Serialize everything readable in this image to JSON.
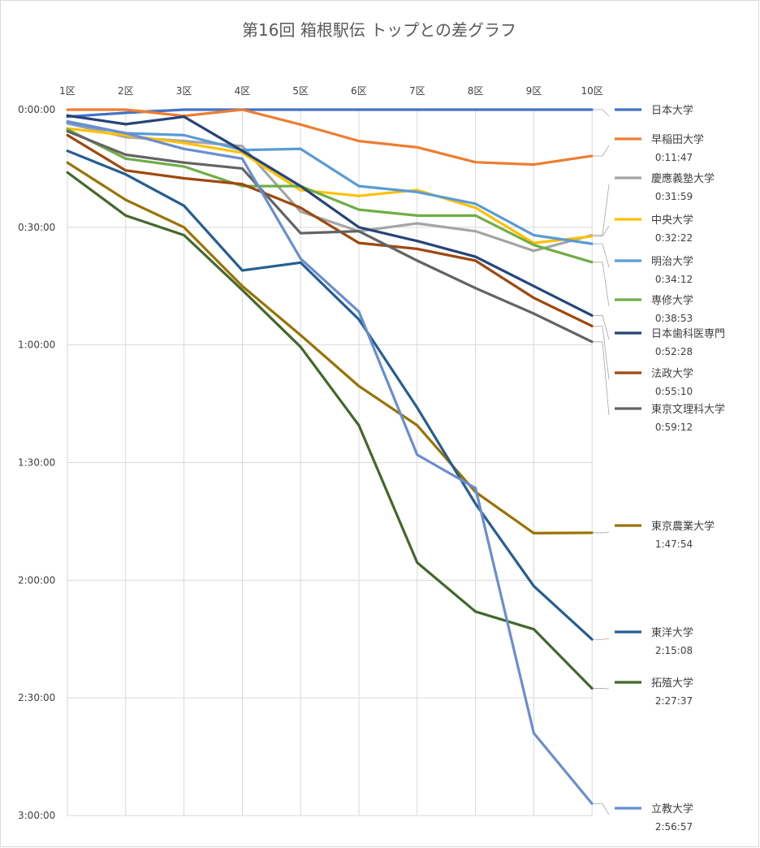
{
  "chart_data": {
    "type": "line",
    "title": "第16回 箱根駅伝 トップとの差グラフ",
    "categories": [
      "1区",
      "2区",
      "3区",
      "4区",
      "5区",
      "6区",
      "7区",
      "8区",
      "9区",
      "10区"
    ],
    "y_tick_labels": [
      "0:00:00",
      "0:30:00",
      "1:00:00",
      "1:30:00",
      "2:00:00",
      "2:30:00",
      "3:00:00"
    ],
    "ylim": [
      0,
      180
    ],
    "y_unit": "minutes behind leader",
    "y_reversed": true,
    "grid": "vertical and horizontal",
    "legend": "right",
    "series": [
      {
        "name": "日本大学",
        "gap": "",
        "color": "#4472c4",
        "values": [
          1.8,
          0.8,
          0,
          0,
          0,
          0,
          0,
          0,
          0,
          0
        ]
      },
      {
        "name": "早稲田大学",
        "gap": "0:11:47",
        "color": "#ed7d31",
        "values": [
          0,
          0,
          1.6,
          0,
          3.8,
          8,
          9.6,
          13.4,
          14,
          11.8
        ]
      },
      {
        "name": "慶應義塾大学",
        "gap": "0:31:59",
        "color": "#a5a5a5",
        "values": [
          3.5,
          7,
          8,
          9.3,
          26,
          31,
          29,
          31,
          36,
          32
        ]
      },
      {
        "name": "中央大学",
        "gap": "0:32:22",
        "color": "#ffc000",
        "values": [
          4.8,
          6.5,
          8.5,
          11,
          20.5,
          22,
          20.5,
          25,
          34,
          32.3
        ]
      },
      {
        "name": "明治大学",
        "gap": "0:34:12",
        "color": "#5b9bd5",
        "values": [
          3.3,
          6,
          6.5,
          10.3,
          10,
          19.5,
          21,
          24,
          32,
          34.2
        ]
      },
      {
        "name": "専修大学",
        "gap": "0:38:53",
        "color": "#70ad47",
        "values": [
          5,
          12.5,
          14.5,
          19.5,
          19.5,
          25.5,
          27,
          27,
          34.5,
          38.9
        ]
      },
      {
        "name": "日本歯科医専門",
        "gap": "0:52:28",
        "color": "#264478",
        "values": [
          1.5,
          3.7,
          1.8,
          10.5,
          19.5,
          30,
          33.5,
          37.5,
          45,
          52.5
        ]
      },
      {
        "name": "法政大学",
        "gap": "0:55:10",
        "color": "#9e480e",
        "values": [
          6.5,
          15.5,
          17.5,
          19,
          25,
          34,
          35.5,
          38.5,
          48,
          55.2
        ]
      },
      {
        "name": "東京文理科大学",
        "gap": "0:59:12",
        "color": "#636363",
        "values": [
          5.5,
          11.5,
          13.5,
          15,
          31.5,
          31,
          38.5,
          45.5,
          52,
          59.2
        ]
      },
      {
        "name": "東京農業大学",
        "gap": "1:47:54",
        "color": "#997300",
        "values": [
          13.5,
          23,
          30,
          45,
          57.5,
          70.5,
          80.5,
          97.5,
          108,
          107.9
        ]
      },
      {
        "name": "東洋大学",
        "gap": "2:15:08",
        "color": "#255e91",
        "values": [
          10.5,
          16.5,
          24.5,
          41,
          39,
          53.5,
          76,
          100.5,
          121.5,
          135.1
        ]
      },
      {
        "name": "拓殖大学",
        "gap": "2:27:37",
        "color": "#43682b",
        "values": [
          16,
          27,
          32,
          46,
          60.5,
          80.5,
          115.5,
          128,
          132.5,
          147.6
        ]
      },
      {
        "name": "立教大学",
        "gap": "2:56:57",
        "color": "#698ed0",
        "values": [
          3,
          6,
          10,
          12.5,
          38,
          51.5,
          88,
          96.5,
          159,
          177
        ]
      }
    ]
  }
}
